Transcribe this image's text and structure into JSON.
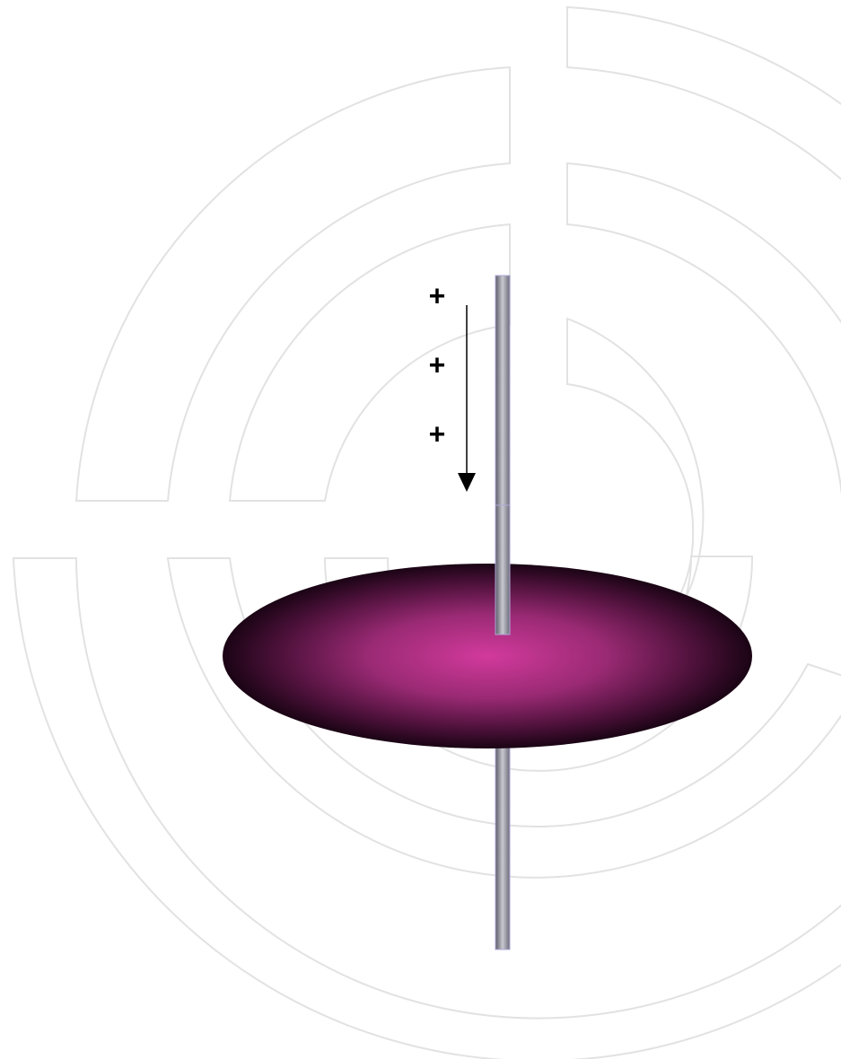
{
  "charges": [
    "+",
    "+",
    "+"
  ]
}
